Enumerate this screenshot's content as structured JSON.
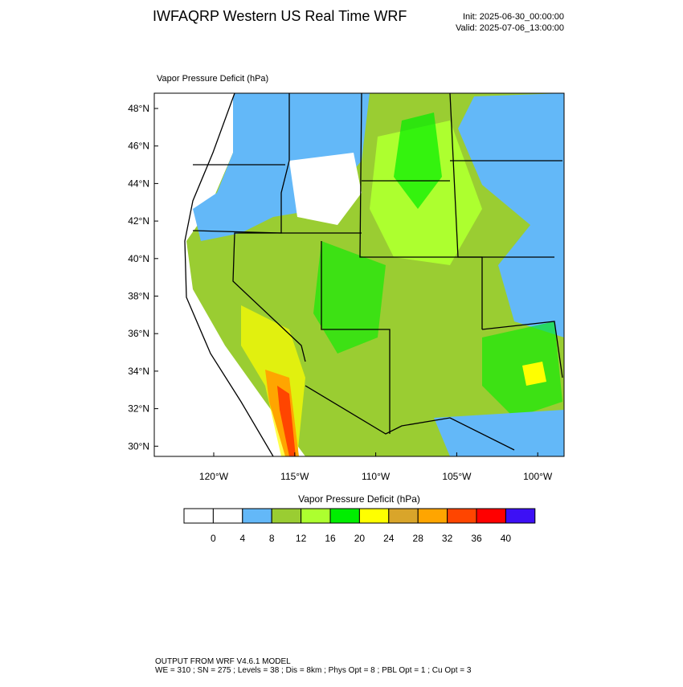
{
  "header": {
    "title": "IWFAQRP Western US Real Time WRF",
    "init": "Init: 2025-06-30_00:00:00",
    "valid": "Valid: 2025-07-06_13:00:00"
  },
  "map": {
    "label": "Vapor Pressure Deficit   (hPa)",
    "lat_ticks": [
      "48°N",
      "46°N",
      "44°N",
      "42°N",
      "40°N",
      "38°N",
      "36°N",
      "34°N",
      "32°N",
      "30°N"
    ],
    "lon_ticks": [
      "120°W",
      "115°W",
      "110°W",
      "105°W",
      "100°W"
    ]
  },
  "colorbar": {
    "title": "Vapor Pressure Deficit  (hPa)",
    "colors": [
      "#ffffff",
      "#ffffff",
      "#63b8f8",
      "#9acd32",
      "#adff2f",
      "#00ee00",
      "#ffff00",
      "#d9a52a",
      "#ffa500",
      "#ff4500",
      "#ff0000",
      "#3d10f5"
    ],
    "labels": [
      "0",
      "4",
      "8",
      "12",
      "16",
      "20",
      "24",
      "28",
      "32",
      "36",
      "40"
    ]
  },
  "footer": {
    "line1": "OUTPUT FROM WRF V4.6.1 MODEL",
    "line2": "WE = 310 ; SN = 275 ; Levels = 38 ; Dis = 8km ; Phys Opt = 8 ; PBL Opt = 1 ; Cu Opt = 3"
  }
}
